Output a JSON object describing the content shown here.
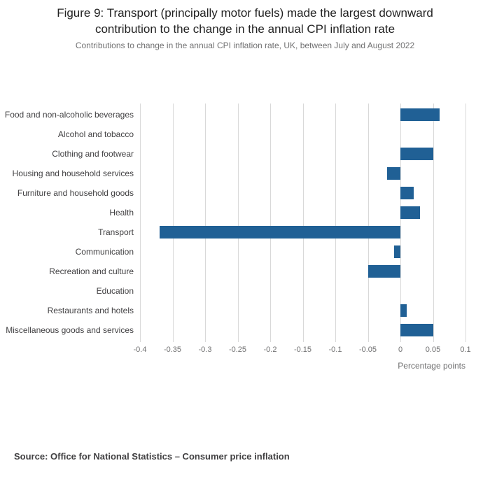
{
  "chart_data": {
    "type": "bar",
    "orientation": "horizontal",
    "title": "Figure 9: Transport (principally motor fuels) made the largest downward contribution to the change in the annual CPI inflation rate",
    "subtitle": "Contributions to change in the annual CPI inflation rate, UK, between July and August 2022",
    "categories": [
      "Food and non-alcoholic beverages",
      "Alcohol and tobacco",
      "Clothing and footwear",
      "Housing and household services",
      "Furniture and household goods",
      "Health",
      "Transport",
      "Communication",
      "Recreation and culture",
      "Education",
      "Restaurants and hotels",
      "Miscellaneous goods and services"
    ],
    "values": [
      0.06,
      0.0,
      0.05,
      -0.02,
      0.02,
      0.03,
      -0.37,
      -0.01,
      -0.05,
      0.0,
      0.01,
      0.05
    ],
    "xlabel": "Percentage points",
    "ylabel": "",
    "xlim": [
      -0.4,
      0.1
    ],
    "ticks": [
      -0.4,
      -0.35,
      -0.3,
      -0.25,
      -0.2,
      -0.15,
      -0.1,
      -0.05,
      0,
      0.05,
      0.1
    ],
    "tick_labels": [
      "-0.4",
      "-0.35",
      "-0.3",
      "-0.25",
      "-0.2",
      "-0.15",
      "-0.1",
      "-0.05",
      "0",
      "0.05",
      "0.1"
    ],
    "bar_color": "#206095",
    "grid": true,
    "legend": false
  },
  "footer": {
    "source": "Source: Office for National Statistics – Consumer price inflation"
  }
}
